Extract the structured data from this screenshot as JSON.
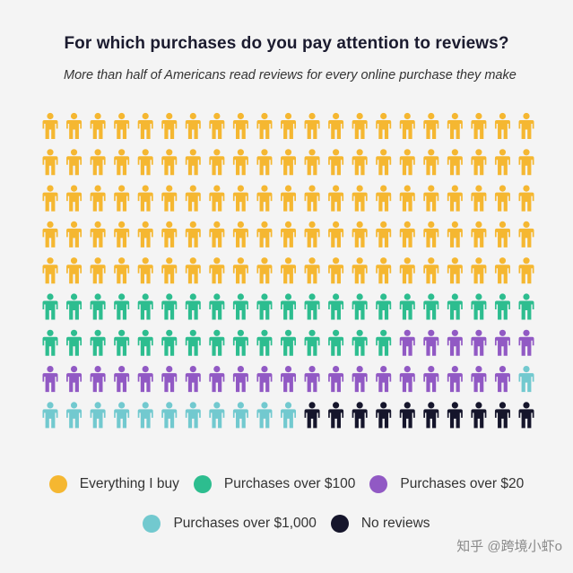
{
  "chart_data": {
    "type": "pictogram",
    "title": "For which purchases do you pay attention to reviews?",
    "subtitle": "More than half of Americans read reviews for every online purchase they make",
    "total_icons": 189,
    "icons_per_row": 21,
    "categories": [
      {
        "name": "Everything I buy",
        "count": 105,
        "color": "#f5b731"
      },
      {
        "name": "Purchases over $100",
        "count": 36,
        "color": "#2dbd8f"
      },
      {
        "name": "Purchases over $20",
        "count": 26,
        "color": "#9159c4"
      },
      {
        "name": "Purchases over $1,000",
        "count": 12,
        "color": "#72c9cf"
      },
      {
        "name": "No reviews",
        "count": 10,
        "color": "#15152b"
      }
    ],
    "legend_rows": [
      [
        0,
        1,
        2
      ],
      [
        3,
        4
      ]
    ]
  },
  "watermark": "知乎 @跨境小虾o"
}
